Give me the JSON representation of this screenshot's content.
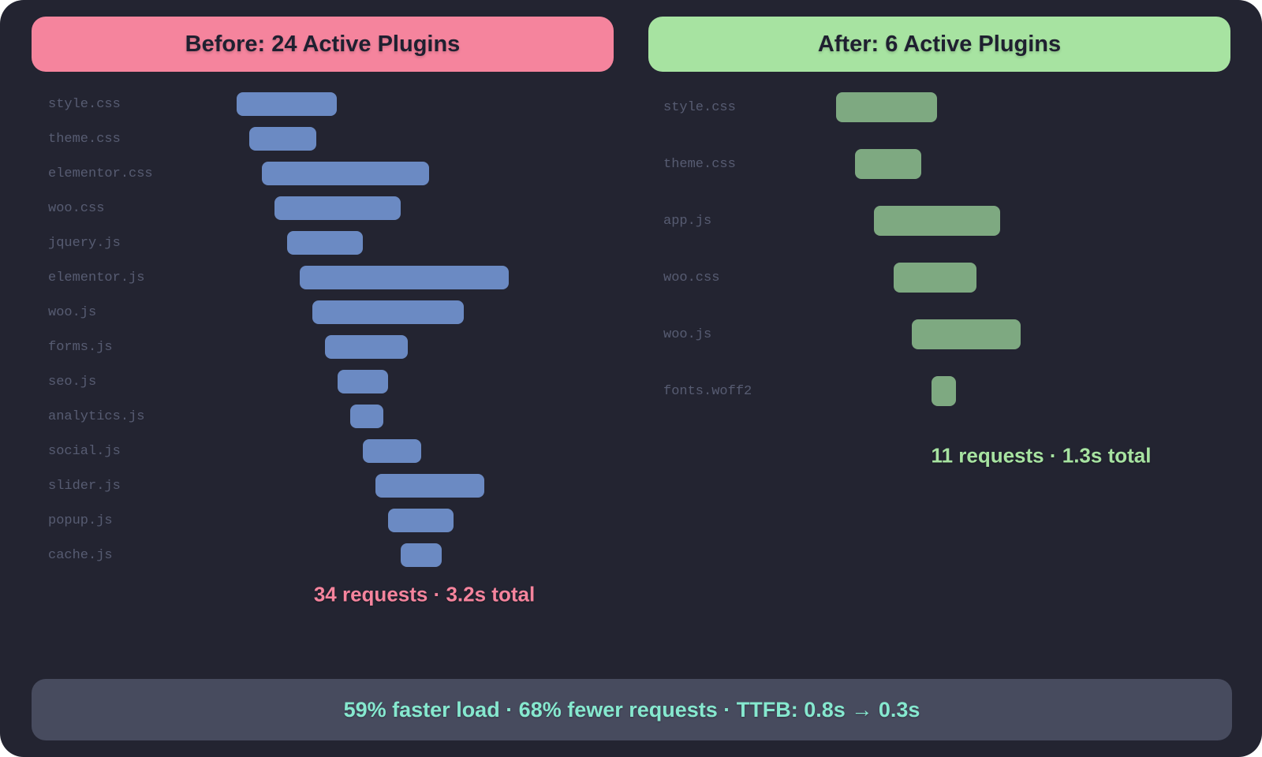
{
  "chart_data": [
    {
      "type": "bar",
      "variant": "waterfall",
      "title": "Before: 24 Active Plugins",
      "summary_label": "34 requests · 3.2s total",
      "requests_count": 34,
      "total_time_s": 3.2,
      "accent_color": "#f5849d",
      "bar_color": "#6b8ac3",
      "x_axis": "relative request start/duration (no axis ticks shown), units: px",
      "requests": [
        {
          "file": "style.css",
          "start": 0,
          "duration": 127
        },
        {
          "file": "theme.css",
          "start": 16,
          "duration": 85
        },
        {
          "file": "elementor.css",
          "start": 32,
          "duration": 212
        },
        {
          "file": "woo.css",
          "start": 48,
          "duration": 160
        },
        {
          "file": "jquery.js",
          "start": 64,
          "duration": 96
        },
        {
          "file": "elementor.js",
          "start": 80,
          "duration": 265
        },
        {
          "file": "woo.js",
          "start": 96,
          "duration": 192
        },
        {
          "file": "forms.js",
          "start": 112,
          "duration": 105
        },
        {
          "file": "seo.js",
          "start": 128,
          "duration": 64
        },
        {
          "file": "analytics.js",
          "start": 144,
          "duration": 42
        },
        {
          "file": "social.js",
          "start": 160,
          "duration": 74
        },
        {
          "file": "slider.js",
          "start": 176,
          "duration": 138
        },
        {
          "file": "popup.js",
          "start": 192,
          "duration": 83
        },
        {
          "file": "cache.js",
          "start": 208,
          "duration": 52
        }
      ]
    },
    {
      "type": "bar",
      "variant": "waterfall",
      "title": "After: 6 Active Plugins",
      "summary_label": "11 requests · 1.3s total",
      "requests_count": 11,
      "total_time_s": 1.3,
      "accent_color": "#a7e3a1",
      "bar_color": "#7ea981",
      "x_axis": "relative request start/duration (no axis ticks shown), units: px",
      "requests": [
        {
          "file": "style.css",
          "start": 0,
          "duration": 128
        },
        {
          "file": "theme.css",
          "start": 24,
          "duration": 84
        },
        {
          "file": "app.js",
          "start": 48,
          "duration": 160
        },
        {
          "file": "woo.css",
          "start": 73,
          "duration": 105
        },
        {
          "file": "woo.js",
          "start": 96,
          "duration": 138
        },
        {
          "file": "fonts.woff2",
          "start": 121,
          "duration": 31
        }
      ]
    }
  ],
  "footer": {
    "text": "59% faster load · 68% fewer requests · TTFB: 0.8s → 0.3s",
    "text_color": "#86e8cf",
    "bg_color": "#474b5e"
  },
  "colors": {
    "canvas_bg": "#232431",
    "label_gray": "#575c72",
    "header_text": "#1f2030"
  }
}
